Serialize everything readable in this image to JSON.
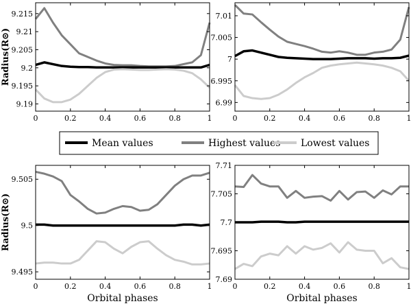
{
  "colors": {
    "mean": "#000000",
    "highest": "#808080",
    "lowest": "#cccccc"
  },
  "legend": {
    "mean": "Mean values",
    "highest": "Highest values",
    "lowest": "Lowest values"
  },
  "chart_data": [
    {
      "type": "line",
      "panel": "top-left",
      "ylabel": "Radius(R⊙)",
      "xlabel": "",
      "xlim": [
        0,
        1
      ],
      "ylim": [
        9.188,
        9.218
      ],
      "xticks": [
        0,
        0.2,
        0.4,
        0.6,
        0.8,
        1
      ],
      "xtick_labels": [
        "0",
        "0.2",
        "0.4",
        "0.6",
        "0.8",
        "1"
      ],
      "yticks": [
        9.19,
        9.195,
        9.2,
        9.205,
        9.21,
        9.215
      ],
      "ytick_labels": [
        "9.19",
        "9.195",
        "9.2",
        "9.205",
        "9.21",
        "9.215"
      ],
      "x": [
        0,
        0.05,
        0.1,
        0.15,
        0.2,
        0.25,
        0.3,
        0.35,
        0.4,
        0.45,
        0.5,
        0.55,
        0.6,
        0.65,
        0.7,
        0.75,
        0.8,
        0.85,
        0.9,
        0.95,
        1.0
      ],
      "series": [
        {
          "name": "Highest values",
          "values": [
            9.2135,
            9.2165,
            9.2125,
            9.209,
            9.2065,
            9.204,
            9.203,
            9.202,
            9.2012,
            9.2008,
            9.2007,
            9.2007,
            9.2005,
            9.2004,
            9.2004,
            9.2004,
            9.2005,
            9.201,
            9.2015,
            9.2035,
            9.2125
          ]
        },
        {
          "name": "Mean values",
          "values": [
            9.2008,
            9.2015,
            9.201,
            9.2005,
            9.2003,
            9.2002,
            9.2002,
            9.2001,
            9.2001,
            9.2001,
            9.2001,
            9.2001,
            9.2001,
            9.2001,
            9.2001,
            9.2001,
            9.2001,
            9.2001,
            9.2001,
            9.2001,
            9.2008
          ]
        },
        {
          "name": "Lowest values",
          "values": [
            9.194,
            9.1915,
            9.1905,
            9.1905,
            9.1912,
            9.1928,
            9.195,
            9.1972,
            9.1988,
            9.1995,
            9.1996,
            9.1995,
            9.1994,
            9.1994,
            9.1995,
            9.1996,
            9.1995,
            9.1992,
            9.1985,
            9.1968,
            9.1945
          ]
        }
      ]
    },
    {
      "type": "line",
      "panel": "top-right",
      "ylabel": "",
      "xlabel": "",
      "xlim": [
        0,
        1
      ],
      "ylim": [
        6.988,
        7.013
      ],
      "xticks": [
        0,
        0.2,
        0.4,
        0.6,
        0.8,
        1
      ],
      "xtick_labels": [
        "0",
        "0.2",
        "0.4",
        "0.6",
        "0.8",
        "1"
      ],
      "yticks": [
        6.99,
        6.995,
        7.0,
        7.005,
        7.01
      ],
      "ytick_labels": [
        "6.99",
        "6.995",
        "7",
        "7.005",
        "7.01"
      ],
      "x": [
        0,
        0.05,
        0.1,
        0.15,
        0.2,
        0.25,
        0.3,
        0.35,
        0.4,
        0.45,
        0.5,
        0.55,
        0.6,
        0.65,
        0.7,
        0.75,
        0.8,
        0.85,
        0.9,
        0.95,
        1.0
      ],
      "series": [
        {
          "name": "Highest values",
          "values": [
            7.0125,
            7.0105,
            7.0103,
            7.0085,
            7.0068,
            7.0052,
            7.004,
            7.0035,
            7.003,
            7.0024,
            7.0017,
            7.0015,
            7.0018,
            7.0015,
            7.001,
            7.001,
            7.0015,
            7.0017,
            7.0022,
            7.0045,
            7.012
          ]
        },
        {
          "name": "Mean values",
          "values": [
            7.0007,
            7.0018,
            7.002,
            7.0015,
            7.001,
            7.0005,
            7.0003,
            7.0002,
            7.0001,
            7.0,
            7.0,
            7.0,
            7.0001,
            7.0002,
            7.0002,
            7.0002,
            7.0001,
            7.0002,
            7.0002,
            7.0003,
            7.0008
          ]
        },
        {
          "name": "Lowest values",
          "values": [
            6.994,
            6.9915,
            6.991,
            6.9908,
            6.991,
            6.9918,
            6.993,
            6.9945,
            6.9958,
            6.9968,
            6.998,
            6.9985,
            6.9988,
            6.999,
            6.9992,
            6.999,
            6.9988,
            6.9985,
            6.998,
            6.9972,
            6.995
          ]
        }
      ]
    },
    {
      "type": "line",
      "panel": "bottom-left",
      "ylabel": "Radius(R⊙)",
      "xlabel": "Orbital phases",
      "xlim": [
        0,
        1
      ],
      "ylim": [
        9.4942,
        9.5065
      ],
      "xticks": [
        0,
        0.2,
        0.4,
        0.6,
        0.8,
        1
      ],
      "xtick_labels": [
        "0",
        "0.2",
        "0.4",
        "0.6",
        "0.8",
        "1"
      ],
      "yticks": [
        9.495,
        9.5,
        9.505
      ],
      "ytick_labels": [
        "9.495",
        "9.5",
        "9.505"
      ],
      "x": [
        0,
        0.05,
        0.1,
        0.15,
        0.2,
        0.25,
        0.3,
        0.35,
        0.4,
        0.45,
        0.5,
        0.55,
        0.6,
        0.65,
        0.7,
        0.75,
        0.8,
        0.85,
        0.9,
        0.95,
        1.0
      ],
      "series": [
        {
          "name": "Highest values",
          "values": [
            9.5058,
            9.5056,
            9.5053,
            9.5048,
            9.5033,
            9.5026,
            9.5018,
            9.5013,
            9.5014,
            9.5018,
            9.5021,
            9.502,
            9.5016,
            9.5017,
            9.5023,
            9.5033,
            9.5043,
            9.505,
            9.5054,
            9.5054,
            9.5057
          ]
        },
        {
          "name": "Mean values",
          "values": [
            9.5001,
            9.5001,
            9.5,
            9.5,
            9.5,
            9.5,
            9.5,
            9.5,
            9.5,
            9.5,
            9.5,
            9.5,
            9.5,
            9.5,
            9.5,
            9.5,
            9.5,
            9.5001,
            9.5001,
            9.5,
            9.5001
          ]
        },
        {
          "name": "Lowest values",
          "values": [
            9.4959,
            9.496,
            9.496,
            9.4959,
            9.4959,
            9.4963,
            9.4973,
            9.4983,
            9.4982,
            9.4975,
            9.497,
            9.4977,
            9.4982,
            9.4983,
            9.4975,
            9.4968,
            9.4963,
            9.4961,
            9.4958,
            9.4958,
            9.4959
          ]
        }
      ]
    },
    {
      "type": "line",
      "panel": "bottom-right",
      "ylabel": "",
      "xlabel": "Orbital phases",
      "xlim": [
        0,
        1
      ],
      "ylim": [
        7.69,
        7.71
      ],
      "xticks": [
        0,
        0.2,
        0.4,
        0.6,
        0.8,
        1
      ],
      "xtick_labels": [
        "0",
        "0.2",
        "0.4",
        "0.6",
        "0.8",
        "1"
      ],
      "yticks": [
        7.69,
        7.695,
        7.7,
        7.705,
        7.71
      ],
      "ytick_labels": [
        "7.69",
        "7.695",
        "7.7",
        "7.705",
        "7.71"
      ],
      "x": [
        0,
        0.05,
        0.1,
        0.15,
        0.2,
        0.25,
        0.3,
        0.35,
        0.4,
        0.45,
        0.5,
        0.55,
        0.6,
        0.65,
        0.7,
        0.75,
        0.8,
        0.85,
        0.9,
        0.95,
        1.0
      ],
      "series": [
        {
          "name": "Highest values",
          "values": [
            7.7063,
            7.7062,
            7.7083,
            7.7068,
            7.7063,
            7.7063,
            7.7043,
            7.7055,
            7.7043,
            7.7045,
            7.7046,
            7.7038,
            7.7055,
            7.704,
            7.7053,
            7.7054,
            7.7043,
            7.7056,
            7.7049,
            7.7063,
            7.7063
          ]
        },
        {
          "name": "Mean values",
          "values": [
            7.7,
            7.7,
            7.7,
            7.7001,
            7.7001,
            7.7001,
            7.7,
            7.7,
            7.7001,
            7.7001,
            7.7001,
            7.7001,
            7.7001,
            7.7001,
            7.7001,
            7.7001,
            7.7001,
            7.7001,
            7.7001,
            7.7001,
            7.7001
          ]
        },
        {
          "name": "Lowest values",
          "values": [
            7.6918,
            7.6927,
            7.6923,
            7.694,
            7.6945,
            7.6942,
            7.6958,
            7.6945,
            7.6958,
            7.6952,
            7.6955,
            7.6963,
            7.6947,
            7.6965,
            7.6952,
            7.695,
            7.695,
            7.6928,
            7.6937,
            7.6921,
            7.6918
          ]
        }
      ]
    }
  ]
}
